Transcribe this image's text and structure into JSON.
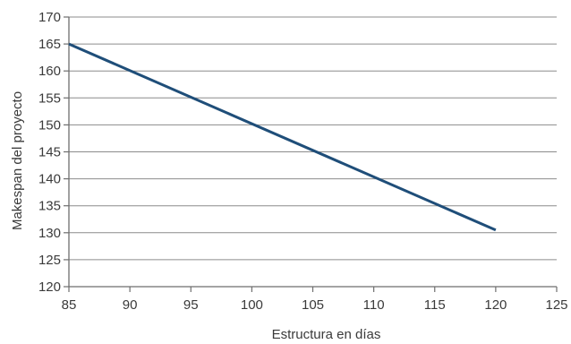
{
  "chart_data": {
    "type": "line",
    "xlabel": "Estructura en días",
    "ylabel": "Makespan del proyecto",
    "xlim": [
      85,
      125
    ],
    "ylim": [
      120,
      170
    ],
    "xticks": [
      85,
      90,
      95,
      100,
      105,
      110,
      115,
      120,
      125
    ],
    "yticks": [
      120,
      125,
      130,
      135,
      140,
      145,
      150,
      155,
      160,
      165,
      170
    ],
    "grid": "horizontal",
    "legend": "none",
    "series": [
      {
        "x": [
          85,
          120
        ],
        "y": [
          165,
          130.5
        ],
        "color": "#1f4e79"
      }
    ]
  }
}
